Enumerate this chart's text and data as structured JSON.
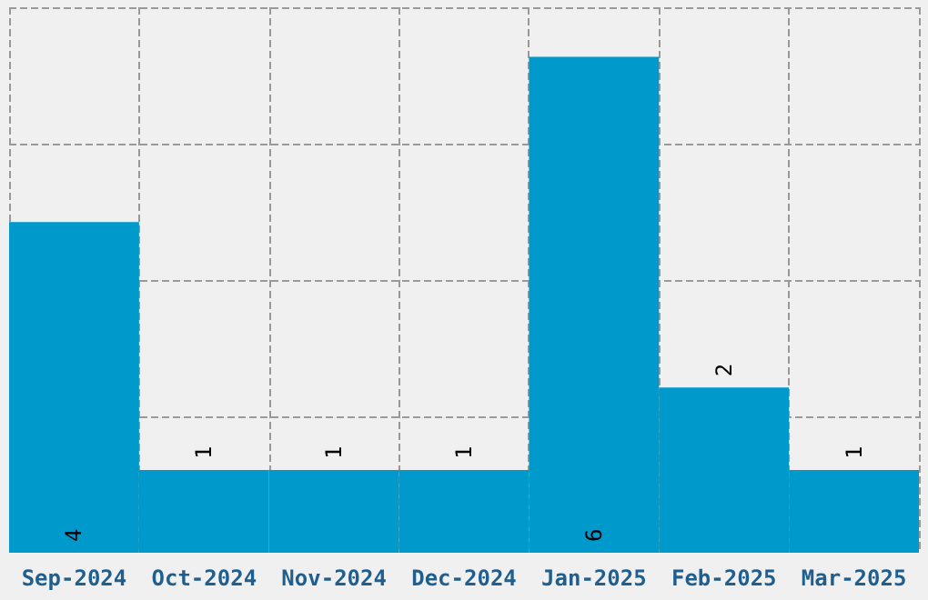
{
  "chart_data": {
    "type": "bar",
    "categories": [
      "Sep-2024",
      "Oct-2024",
      "Nov-2024",
      "Dec-2024",
      "Jan-2025",
      "Feb-2025",
      "Mar-2025"
    ],
    "values": [
      4,
      1,
      1,
      1,
      6,
      2,
      1
    ],
    "color": "#0099cc",
    "ylim": [
      0,
      6.6
    ],
    "yticks": [
      {
        "value": 1.65,
        "label": null
      },
      {
        "value": 3.3,
        "label": null
      },
      {
        "value": 4.95,
        "label": null
      },
      {
        "value": 6.6,
        "label": null
      }
    ],
    "grid": true,
    "data_labels": true,
    "tick_labels": "x"
  }
}
